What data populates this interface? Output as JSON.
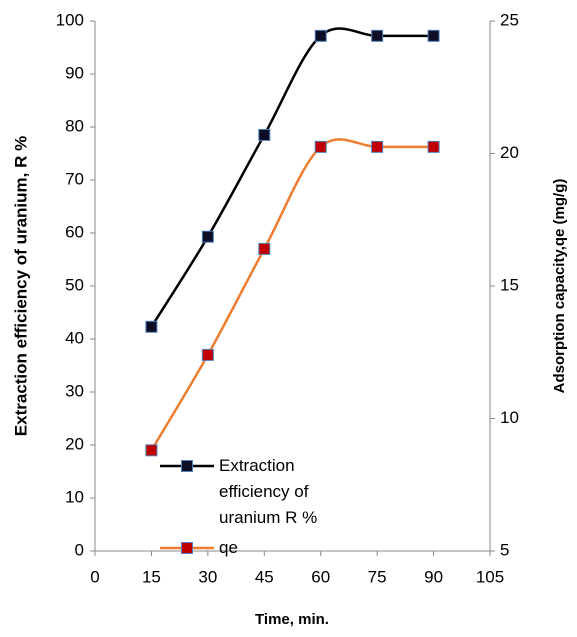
{
  "chart_data": {
    "type": "line",
    "x_label": "Time, min.",
    "y_label": "Extraction efficiency of uranium, R %",
    "y2_label": "Adsorption capacity,qe (mg/g)",
    "x": [
      15,
      30,
      45,
      60,
      75,
      90
    ],
    "series": [
      {
        "name": "Extraction efficiency of uranium R %",
        "color": "#000000",
        "marker_color": "#0d0d26",
        "values": [
          42.3,
          59.3,
          78.5,
          97.2,
          97.2,
          97.2
        ]
      },
      {
        "name": "qe",
        "color": "#ed7d31",
        "marker_color": "#c00000",
        "axis": "y2",
        "values": [
          8.8,
          12.4,
          16.4,
          20.25,
          20.25,
          20.25
        ]
      }
    ],
    "xlim": [
      0,
      105
    ],
    "xticks": [
      0,
      15,
      30,
      45,
      60,
      75,
      90,
      105
    ],
    "ylim": [
      0,
      100
    ],
    "yticks": [
      0,
      10,
      20,
      30,
      40,
      50,
      60,
      70,
      80,
      90,
      100
    ],
    "y2lim": [
      5,
      25
    ],
    "y2ticks": [
      5,
      10,
      15,
      20,
      25
    ],
    "smooth": true
  }
}
